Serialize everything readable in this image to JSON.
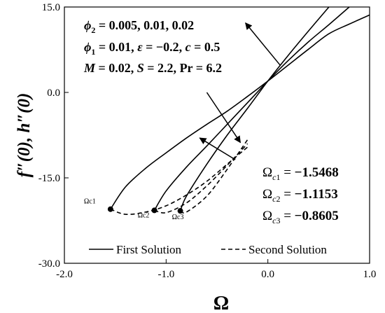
{
  "chart_data": {
    "type": "line",
    "title": "",
    "xlabel": "Ω",
    "ylabel": "f″(0), h″(0)",
    "xlim": [
      -2.0,
      1.0
    ],
    "ylim": [
      -30.0,
      15.0
    ],
    "xticks": [
      "-2.0",
      "-1.0",
      "0.0",
      "1.0"
    ],
    "yticks": [
      "-30.0",
      "-15.0",
      "0.0",
      "15.0"
    ],
    "grid": false,
    "legend_position": "bottom",
    "legend": [
      "First Solution",
      "Second Solution"
    ],
    "annotations": [
      "φ2 = 0.005, 0.01, 0.02",
      "φ1 = 0.01, ε = −0.2, c = 0.5",
      "M = 0.02, S = 2.2, Pr = 6.2"
    ],
    "critical_values": [
      {
        "label": "Ωc1",
        "text": "Ωc1 = −1.5468",
        "omega": -1.5468,
        "y": -20.5
      },
      {
        "label": "Ωc2",
        "text": "Ωc2 = −1.1153",
        "omega": -1.1153,
        "y": -20.7
      },
      {
        "label": "Ωc3",
        "text": "Ωc3 = −0.8605",
        "omega": -0.8605,
        "y": -20.8
      }
    ],
    "series": [
      {
        "solution": "first",
        "curve": 1,
        "x": [
          -1.5468,
          -1.4,
          -1.2,
          -1.0,
          -0.8,
          -0.6,
          -0.4,
          -0.2,
          0.0,
          0.2,
          0.4,
          0.6,
          0.8,
          1.0
        ],
        "y": [
          -20.5,
          -16.6,
          -13.3,
          -10.6,
          -8.0,
          -5.6,
          -3.3,
          -0.7,
          2.0,
          4.8,
          7.6,
          10.3,
          12.0,
          13.6
        ]
      },
      {
        "solution": "first",
        "curve": 2,
        "x": [
          -1.1153,
          -1.0,
          -0.8,
          -0.6,
          -0.4,
          -0.2,
          0.0,
          0.2,
          0.4,
          0.6,
          0.8
        ],
        "y": [
          -20.7,
          -17.3,
          -13.1,
          -9.4,
          -5.6,
          -1.8,
          2.0,
          5.6,
          8.9,
          11.9,
          15.0
        ]
      },
      {
        "solution": "first",
        "curve": 3,
        "x": [
          -0.8605,
          -0.8,
          -0.6,
          -0.4,
          -0.2,
          0.0,
          0.2,
          0.4,
          0.6
        ],
        "y": [
          -20.8,
          -18.2,
          -12.6,
          -7.5,
          -2.8,
          2.0,
          6.5,
          10.8,
          15.0
        ]
      },
      {
        "solution": "second",
        "curve": 1,
        "x": [
          -1.5468,
          -1.4,
          -1.2,
          -1.0,
          -0.8,
          -0.6,
          -0.4,
          -0.2
        ],
        "y": [
          -20.5,
          -21.4,
          -21.0,
          -19.9,
          -18.0,
          -15.6,
          -12.6,
          -9.6
        ]
      },
      {
        "solution": "second",
        "curve": 2,
        "x": [
          -1.1153,
          -1.0,
          -0.8,
          -0.6,
          -0.4,
          -0.2
        ],
        "y": [
          -20.7,
          -21.1,
          -19.4,
          -16.4,
          -12.8,
          -9.0
        ]
      },
      {
        "solution": "second",
        "curve": 3,
        "x": [
          -0.8605,
          -0.8,
          -0.6,
          -0.4,
          -0.2
        ],
        "y": [
          -20.8,
          -21.0,
          -18.2,
          -13.5,
          -8.3
        ]
      }
    ],
    "arrows": [
      {
        "from": [
          -0.6,
          0.0
        ],
        "to": [
          -0.27,
          -8.8
        ]
      },
      {
        "from": [
          -0.32,
          -11.8
        ],
        "to": [
          -0.67,
          -8.0
        ]
      },
      {
        "from": [
          0.12,
          4.8
        ],
        "to": [
          -0.22,
          12.2
        ]
      }
    ]
  }
}
